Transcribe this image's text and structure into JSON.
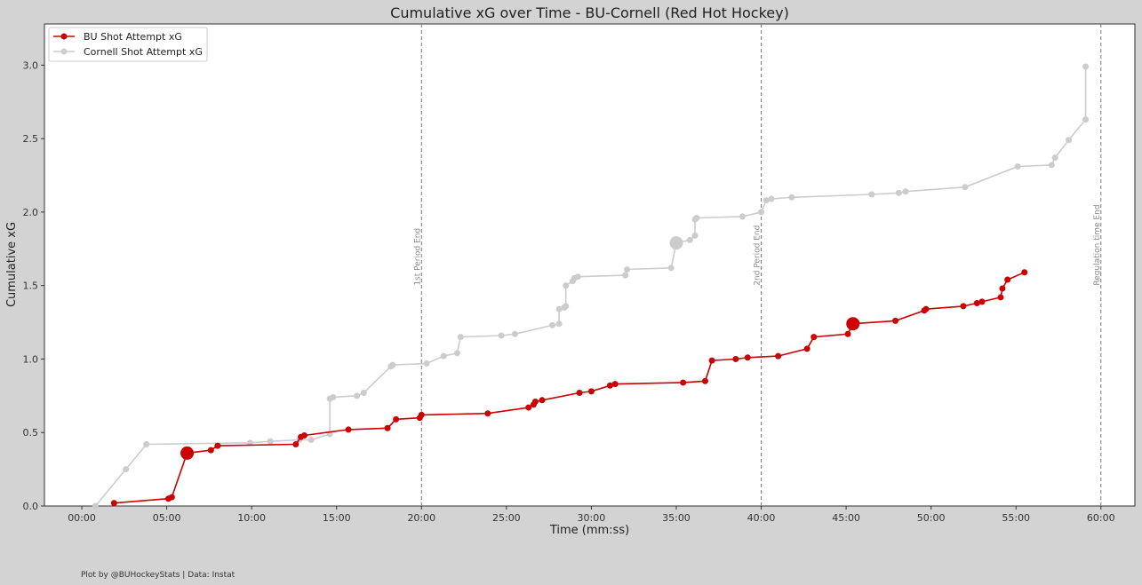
{
  "chart_data": {
    "type": "line",
    "title": "Cumulative xG over Time - BU-Cornell (Red Hot Hockey)",
    "xlabel": "Time (mm:ss)",
    "ylabel": "Cumulative xG",
    "xlim": [
      -2.2,
      62.0
    ],
    "ylim": [
      0,
      3.28
    ],
    "x_ticks": [
      0,
      5,
      10,
      15,
      20,
      25,
      30,
      35,
      40,
      45,
      50,
      55,
      60
    ],
    "x_tick_labels": [
      "00:00",
      "05:00",
      "10:00",
      "15:00",
      "20:00",
      "25:00",
      "30:00",
      "35:00",
      "40:00",
      "45:00",
      "50:00",
      "55:00",
      "60:00"
    ],
    "y_ticks": [
      0,
      0.5,
      1.0,
      1.5,
      2.0,
      2.5,
      3.0
    ],
    "y_tick_labels": [
      "0.0",
      "0.5",
      "1.0",
      "1.5",
      "2.0",
      "2.5",
      "3.0"
    ],
    "grid": false,
    "legend_position": "top-left",
    "vlines": [
      {
        "x": 20,
        "label": "1st Period End"
      },
      {
        "x": 40,
        "label": "2nd Period End"
      },
      {
        "x": 60,
        "label": "Regulation time End"
      }
    ],
    "series": [
      {
        "name": "BU Shot Attempt xG",
        "color": "#cc0000",
        "points": [
          {
            "x": 1.9,
            "y": 0.02
          },
          {
            "x": 5.1,
            "y": 0.05
          },
          {
            "x": 5.3,
            "y": 0.06
          },
          {
            "x": 6.2,
            "y": 0.36,
            "goal": true
          },
          {
            "x": 7.6,
            "y": 0.38
          },
          {
            "x": 8.0,
            "y": 0.41
          },
          {
            "x": 12.6,
            "y": 0.42
          },
          {
            "x": 12.9,
            "y": 0.47
          },
          {
            "x": 13.1,
            "y": 0.48
          },
          {
            "x": 15.7,
            "y": 0.52
          },
          {
            "x": 18.0,
            "y": 0.53
          },
          {
            "x": 18.5,
            "y": 0.59
          },
          {
            "x": 19.9,
            "y": 0.6
          },
          {
            "x": 20.0,
            "y": 0.62
          },
          {
            "x": 23.9,
            "y": 0.63
          },
          {
            "x": 26.3,
            "y": 0.67
          },
          {
            "x": 26.6,
            "y": 0.69
          },
          {
            "x": 26.7,
            "y": 0.71
          },
          {
            "x": 27.1,
            "y": 0.72
          },
          {
            "x": 29.3,
            "y": 0.77
          },
          {
            "x": 30.0,
            "y": 0.78
          },
          {
            "x": 31.1,
            "y": 0.82
          },
          {
            "x": 31.4,
            "y": 0.83
          },
          {
            "x": 35.4,
            "y": 0.84
          },
          {
            "x": 36.7,
            "y": 0.85
          },
          {
            "x": 37.1,
            "y": 0.99
          },
          {
            "x": 38.5,
            "y": 1.0
          },
          {
            "x": 39.2,
            "y": 1.01
          },
          {
            "x": 41.0,
            "y": 1.02
          },
          {
            "x": 42.7,
            "y": 1.07
          },
          {
            "x": 43.1,
            "y": 1.15
          },
          {
            "x": 45.1,
            "y": 1.17
          },
          {
            "x": 45.4,
            "y": 1.24,
            "goal": true
          },
          {
            "x": 47.9,
            "y": 1.26
          },
          {
            "x": 49.6,
            "y": 1.33
          },
          {
            "x": 49.7,
            "y": 1.34
          },
          {
            "x": 51.9,
            "y": 1.36
          },
          {
            "x": 52.7,
            "y": 1.38
          },
          {
            "x": 53.0,
            "y": 1.39
          },
          {
            "x": 54.1,
            "y": 1.42
          },
          {
            "x": 54.2,
            "y": 1.48
          },
          {
            "x": 54.5,
            "y": 1.54
          },
          {
            "x": 55.5,
            "y": 1.59
          }
        ]
      },
      {
        "name": "Cornell Shot Attempt xG",
        "color": "#cccccc",
        "points": [
          {
            "x": 0.8,
            "y": 0.0
          },
          {
            "x": 2.6,
            "y": 0.25
          },
          {
            "x": 3.8,
            "y": 0.42
          },
          {
            "x": 9.9,
            "y": 0.43
          },
          {
            "x": 11.1,
            "y": 0.44
          },
          {
            "x": 12.8,
            "y": 0.45
          },
          {
            "x": 13.5,
            "y": 0.45
          },
          {
            "x": 14.6,
            "y": 0.49
          },
          {
            "x": 14.6,
            "y": 0.73
          },
          {
            "x": 14.8,
            "y": 0.74
          },
          {
            "x": 16.2,
            "y": 0.75
          },
          {
            "x": 16.6,
            "y": 0.77
          },
          {
            "x": 18.2,
            "y": 0.95
          },
          {
            "x": 18.3,
            "y": 0.96
          },
          {
            "x": 20.3,
            "y": 0.97
          },
          {
            "x": 21.3,
            "y": 1.02
          },
          {
            "x": 22.1,
            "y": 1.04
          },
          {
            "x": 22.3,
            "y": 1.15
          },
          {
            "x": 24.7,
            "y": 1.16
          },
          {
            "x": 25.5,
            "y": 1.17
          },
          {
            "x": 27.7,
            "y": 1.23
          },
          {
            "x": 28.1,
            "y": 1.24
          },
          {
            "x": 28.1,
            "y": 1.34
          },
          {
            "x": 28.4,
            "y": 1.35
          },
          {
            "x": 28.5,
            "y": 1.36
          },
          {
            "x": 28.5,
            "y": 1.5
          },
          {
            "x": 28.9,
            "y": 1.53
          },
          {
            "x": 29.0,
            "y": 1.55
          },
          {
            "x": 29.2,
            "y": 1.56
          },
          {
            "x": 32.0,
            "y": 1.57
          },
          {
            "x": 32.1,
            "y": 1.61
          },
          {
            "x": 34.7,
            "y": 1.62
          },
          {
            "x": 35.0,
            "y": 1.79,
            "goal": true
          },
          {
            "x": 35.8,
            "y": 1.81
          },
          {
            "x": 36.1,
            "y": 1.84
          },
          {
            "x": 36.1,
            "y": 1.95
          },
          {
            "x": 36.2,
            "y": 1.96
          },
          {
            "x": 38.9,
            "y": 1.97
          },
          {
            "x": 40.0,
            "y": 2.0
          },
          {
            "x": 40.3,
            "y": 2.08
          },
          {
            "x": 40.6,
            "y": 2.09
          },
          {
            "x": 41.8,
            "y": 2.1
          },
          {
            "x": 46.5,
            "y": 2.12
          },
          {
            "x": 48.1,
            "y": 2.13
          },
          {
            "x": 48.5,
            "y": 2.14
          },
          {
            "x": 52.0,
            "y": 2.17
          },
          {
            "x": 55.1,
            "y": 2.31
          },
          {
            "x": 57.1,
            "y": 2.32
          },
          {
            "x": 57.3,
            "y": 2.37
          },
          {
            "x": 58.1,
            "y": 2.49
          },
          {
            "x": 59.1,
            "y": 2.63
          },
          {
            "x": 59.1,
            "y": 2.99
          }
        ]
      }
    ]
  },
  "footer": {
    "credit": "Plot by @BUHockeyStats | Data: Instat"
  }
}
